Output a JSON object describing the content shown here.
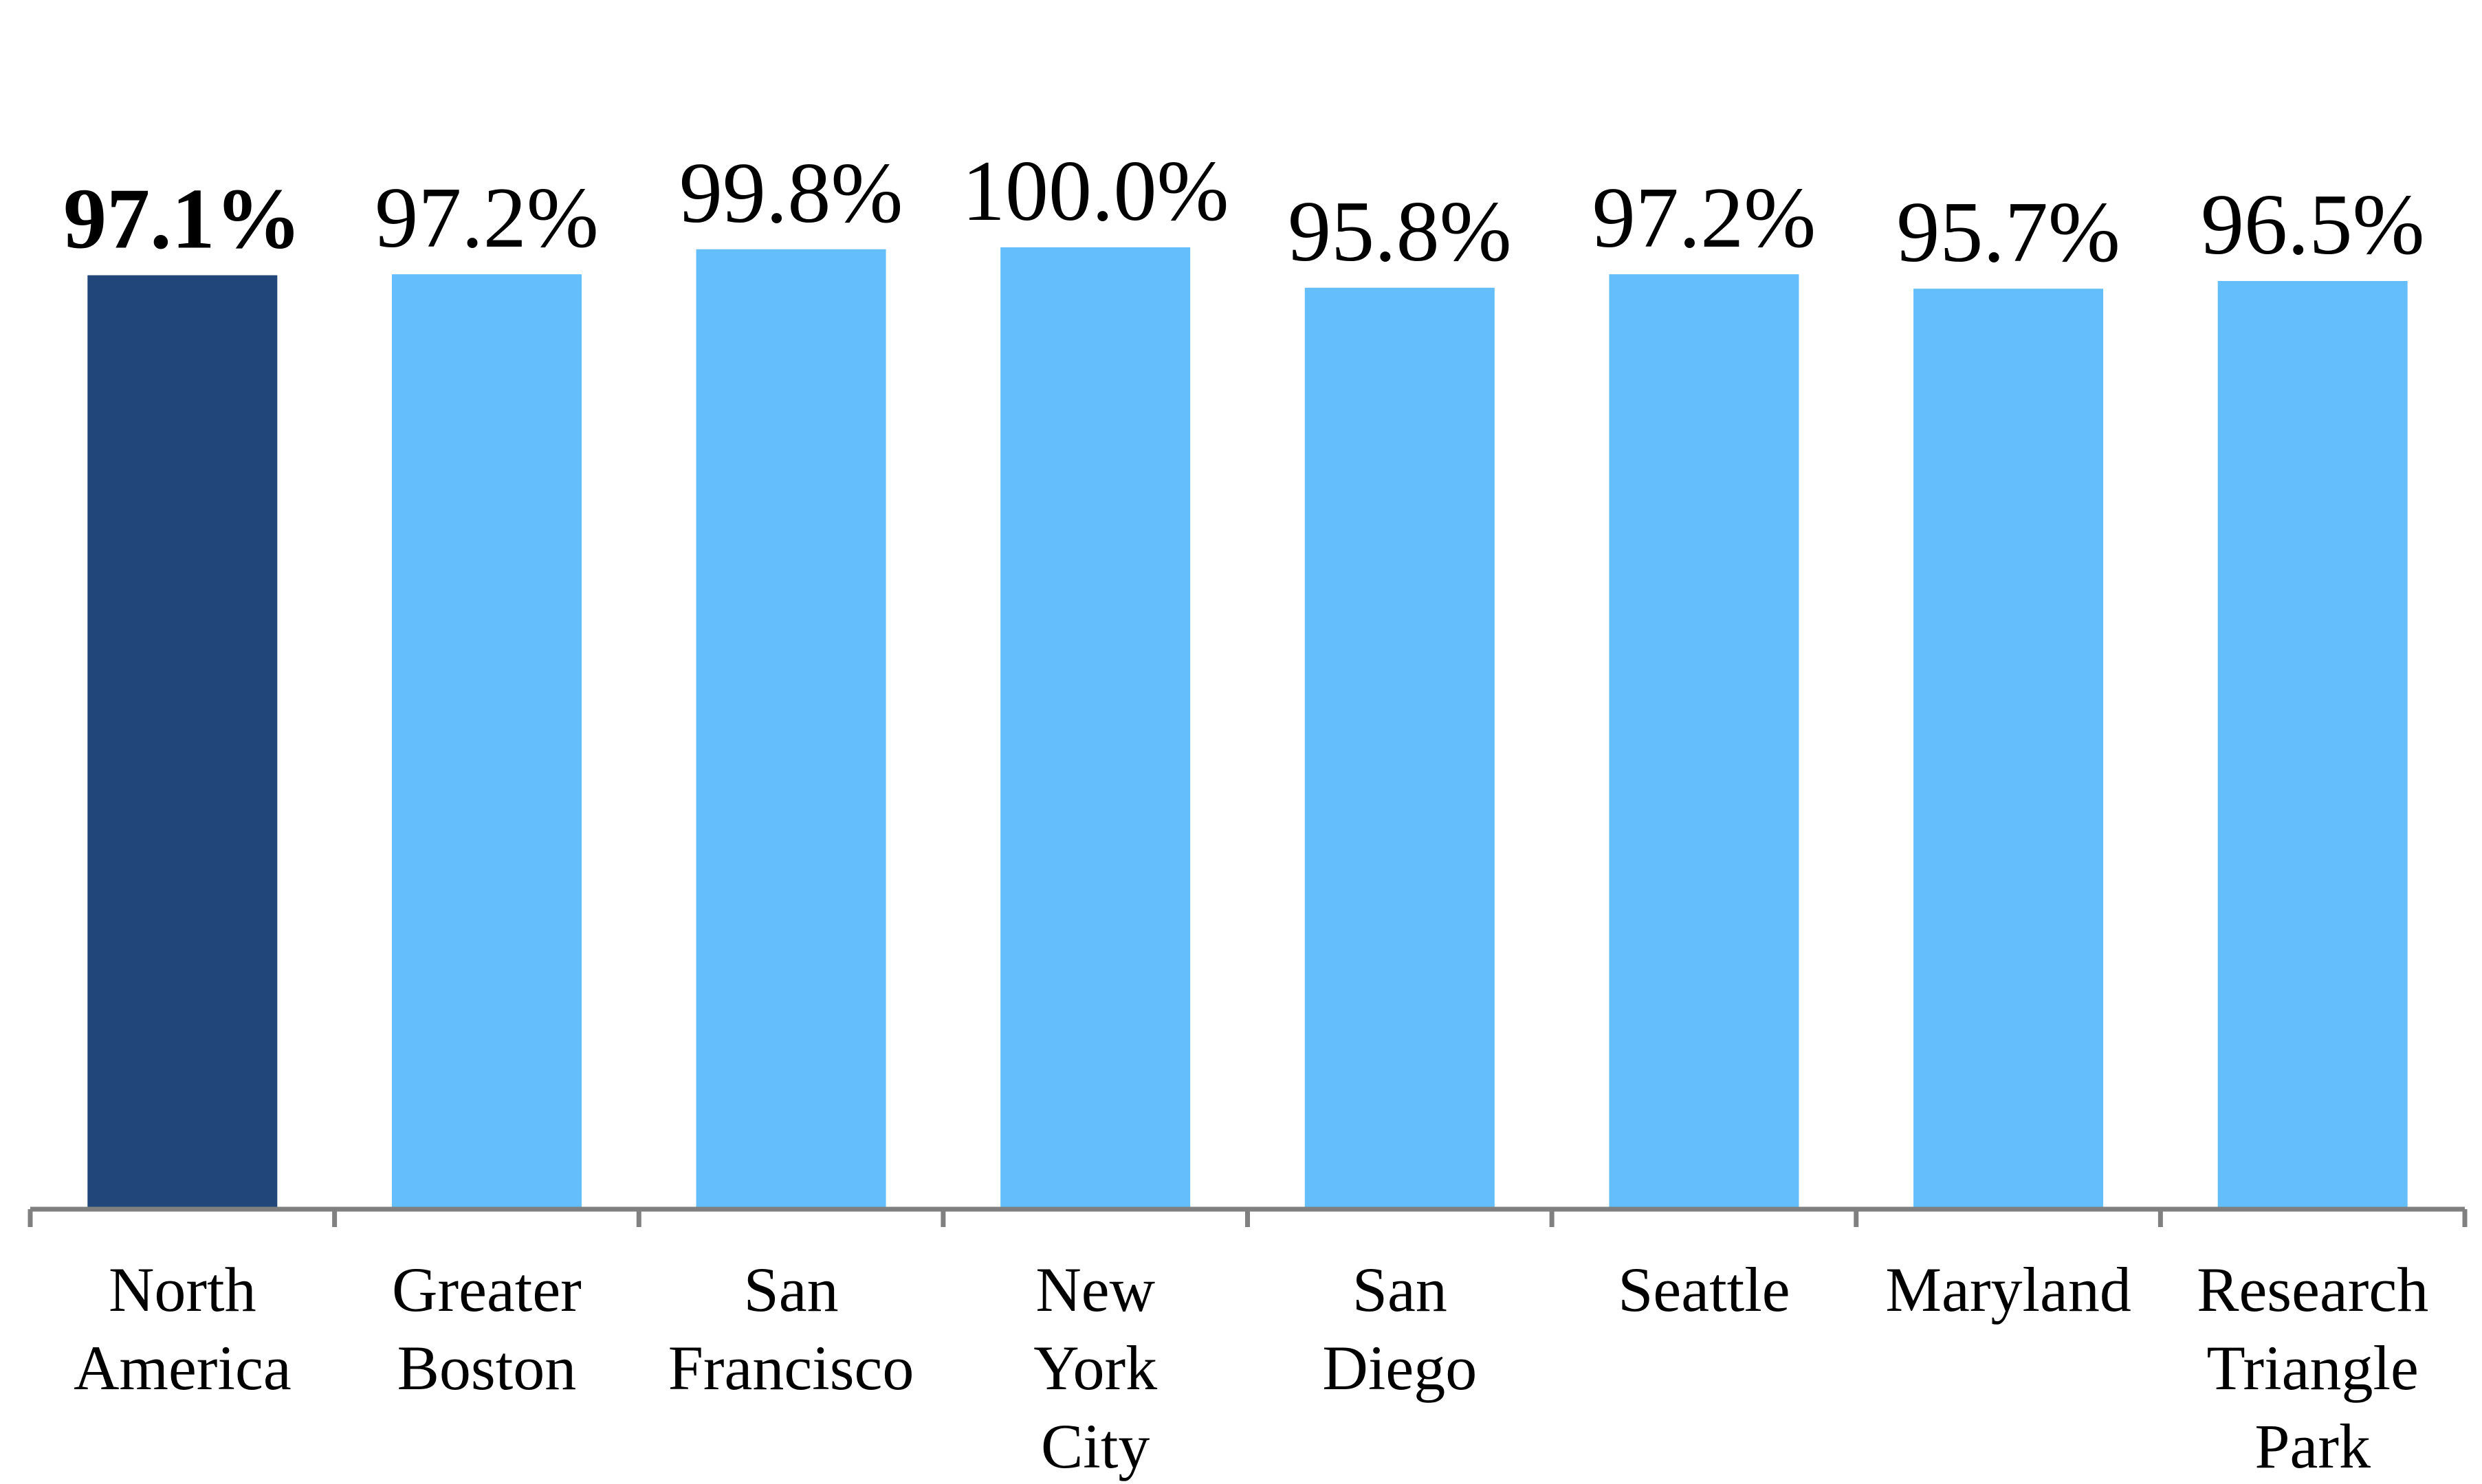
{
  "chart_data": {
    "type": "bar",
    "categories": [
      [
        "North",
        "America"
      ],
      [
        "Greater",
        "Boston"
      ],
      [
        "San",
        "Francisco"
      ],
      [
        "New",
        "York",
        "City"
      ],
      [
        "San",
        "Diego"
      ],
      [
        "Seattle"
      ],
      [
        "Maryland"
      ],
      [
        "Research",
        "Triangle",
        "Park"
      ]
    ],
    "values": [
      97.1,
      97.2,
      99.8,
      100.0,
      95.8,
      97.2,
      95.7,
      96.5
    ],
    "value_labels": [
      "97.1%",
      "97.2%",
      "99.8%",
      "100.0%",
      "95.8%",
      "97.2%",
      "95.7%",
      "96.5%"
    ],
    "highlighted_index": 0,
    "title": "",
    "xlabel": "",
    "ylabel": "",
    "ylim": [
      0,
      100
    ],
    "grid": false,
    "legend": "none",
    "colors": {
      "highlight": "#21477A",
      "bar": "#64BEFC",
      "axis": "#808080"
    }
  }
}
